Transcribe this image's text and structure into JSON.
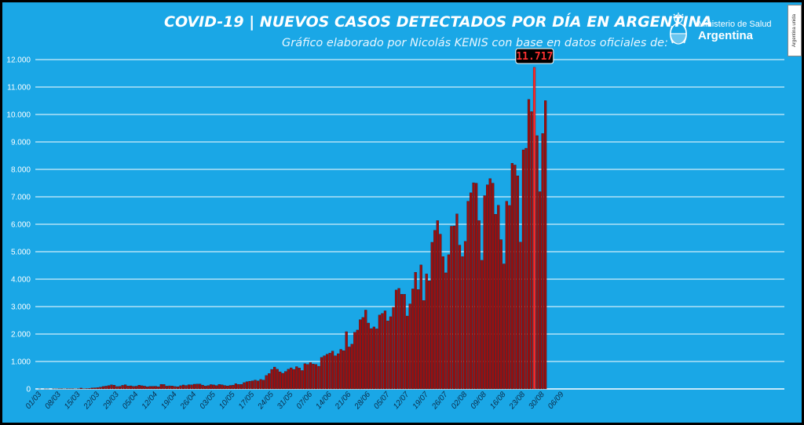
{
  "header": {
    "title": "COVID-19  |  NUEVOS CASOS DETECTADOS POR DÍA EN ARGENTINA",
    "subtitle": "Gráfico elaborado por Nicolás KENIS con base en datos oficiales de:",
    "logo_line1": "Ministerio de Salud",
    "logo_line2": "Argentina",
    "badge": "Argentina unida"
  },
  "colors": {
    "background": "#1aa7e6",
    "bar": "#9b0f0f",
    "bar_highlight": "#ff2a2a",
    "grid": "#ffffff"
  },
  "chart_data": {
    "type": "bar",
    "ylim": [
      0,
      12000
    ],
    "yticks": [
      0,
      1000,
      2000,
      3000,
      4000,
      5000,
      6000,
      7000,
      8000,
      9000,
      10000,
      11000,
      12000
    ],
    "ytick_labels": [
      "0",
      "1.000",
      "2.000",
      "3.000",
      "4.000",
      "5.000",
      "6.000",
      "7.000",
      "8.000",
      "9.000",
      "10.000",
      "11.000",
      "12.000"
    ],
    "xtick_labels": [
      "01/03",
      "08/03",
      "15/03",
      "22/03",
      "29/03",
      "05/04",
      "12/04",
      "19/04",
      "26/04",
      "03/05",
      "10/05",
      "17/05",
      "24/05",
      "31/05",
      "07/06",
      "14/06",
      "21/06",
      "28/06",
      "05/07",
      "12/07",
      "19/07",
      "26/07",
      "02/08",
      "09/08",
      "16/08",
      "23/08",
      "30/08",
      "06/09"
    ],
    "highlight": {
      "label": "11.717",
      "value": 11717
    },
    "values": [
      1,
      0,
      1,
      1,
      0,
      4,
      3,
      5,
      6,
      3,
      5,
      6,
      10,
      3,
      11,
      31,
      7,
      15,
      18,
      37,
      41,
      47,
      64,
      89,
      103,
      123,
      148,
      136,
      87,
      92,
      131,
      153,
      107,
      114,
      95,
      100,
      136,
      117,
      102,
      77,
      95,
      95,
      98,
      81,
      168,
      162,
      103,
      113,
      108,
      89,
      81,
      117,
      144,
      126,
      154,
      149,
      172,
      177,
      176,
      140,
      104,
      125,
      158,
      146,
      122,
      162,
      150,
      126,
      111,
      129,
      139,
      190,
      166,
      165,
      230,
      263,
      282,
      295,
      322,
      293,
      345,
      322,
      489,
      560,
      712,
      798,
      718,
      624,
      571,
      636,
      718,
      770,
      713,
      814,
      764,
      672,
      919,
      891,
      963,
      909,
      893,
      827,
      1149,
      1208,
      1266,
      1304,
      1380,
      1208,
      1285,
      1442,
      1395,
      2086,
      1531,
      1632,
      2062,
      2146,
      2525,
      2604,
      2873,
      2401,
      2200,
      2260,
      2189,
      2693,
      2749,
      2845,
      2479,
      2632,
      2977,
      3604,
      3663,
      3449,
      3449,
      2657,
      3099,
      3645,
      4250,
      3623,
      4518,
      3223,
      4190,
      3937,
      5344,
      5782,
      6134,
      5641,
      4824,
      4231,
      4890,
      5929,
      5939,
      6377,
      5241,
      4824,
      5376,
      6840,
      7147,
      7513,
      7498,
      6134,
      4688,
      7043,
      7439,
      7663,
      7498,
      6365,
      6693,
      5441,
      4557,
      6840,
      6687,
      8225,
      8159,
      7767,
      5352,
      8713,
      8771,
      10550,
      10104,
      11717,
      9230,
      7187,
      9309,
      10504
    ]
  }
}
